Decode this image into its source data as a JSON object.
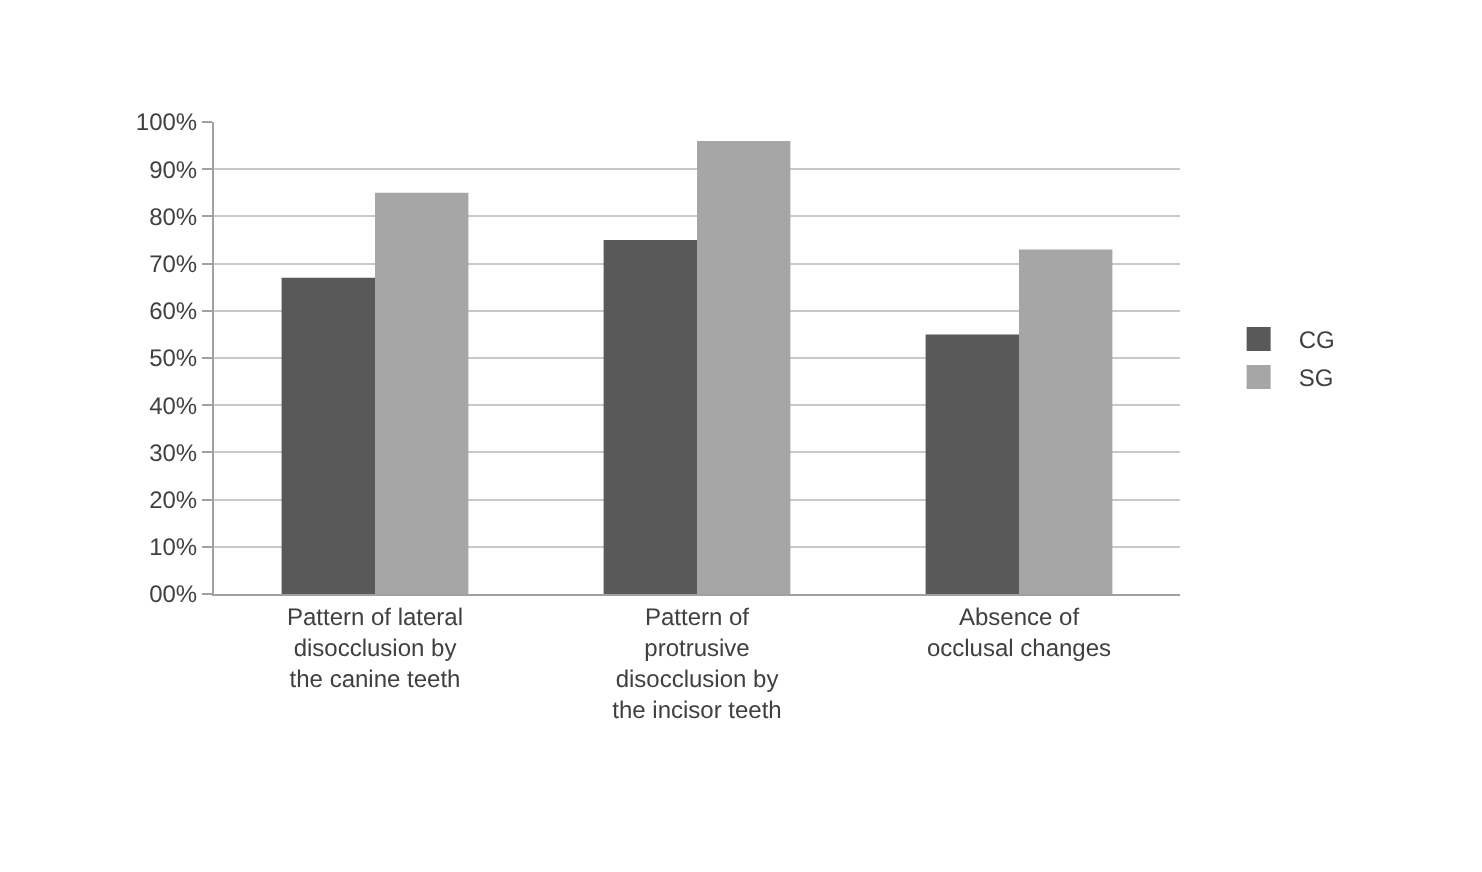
{
  "chart_data": {
    "type": "bar",
    "categories": [
      "Pattern of lateral disocclusion by the canine teeth",
      "Pattern of protrusive disocclusion by the incisor teeth",
      "Absence of occlusal changes"
    ],
    "series": [
      {
        "name": "CG",
        "color": "#595959",
        "values": [
          67,
          75,
          55
        ]
      },
      {
        "name": "SG",
        "color": "#a6a6a6",
        "values": [
          85,
          96,
          73
        ]
      }
    ],
    "ylim": [
      0,
      100
    ],
    "yticks": [
      {
        "value": 0,
        "label": "00%"
      },
      {
        "value": 10,
        "label": "10%"
      },
      {
        "value": 20,
        "label": "20%"
      },
      {
        "value": 30,
        "label": "30%"
      },
      {
        "value": 40,
        "label": "40%"
      },
      {
        "value": 50,
        "label": "50%"
      },
      {
        "value": 60,
        "label": "60%"
      },
      {
        "value": 70,
        "label": "70%"
      },
      {
        "value": 80,
        "label": "80%"
      },
      {
        "value": 90,
        "label": "90%"
      },
      {
        "value": 100,
        "label": "100%"
      }
    ],
    "grid": "y",
    "legend": "right"
  }
}
